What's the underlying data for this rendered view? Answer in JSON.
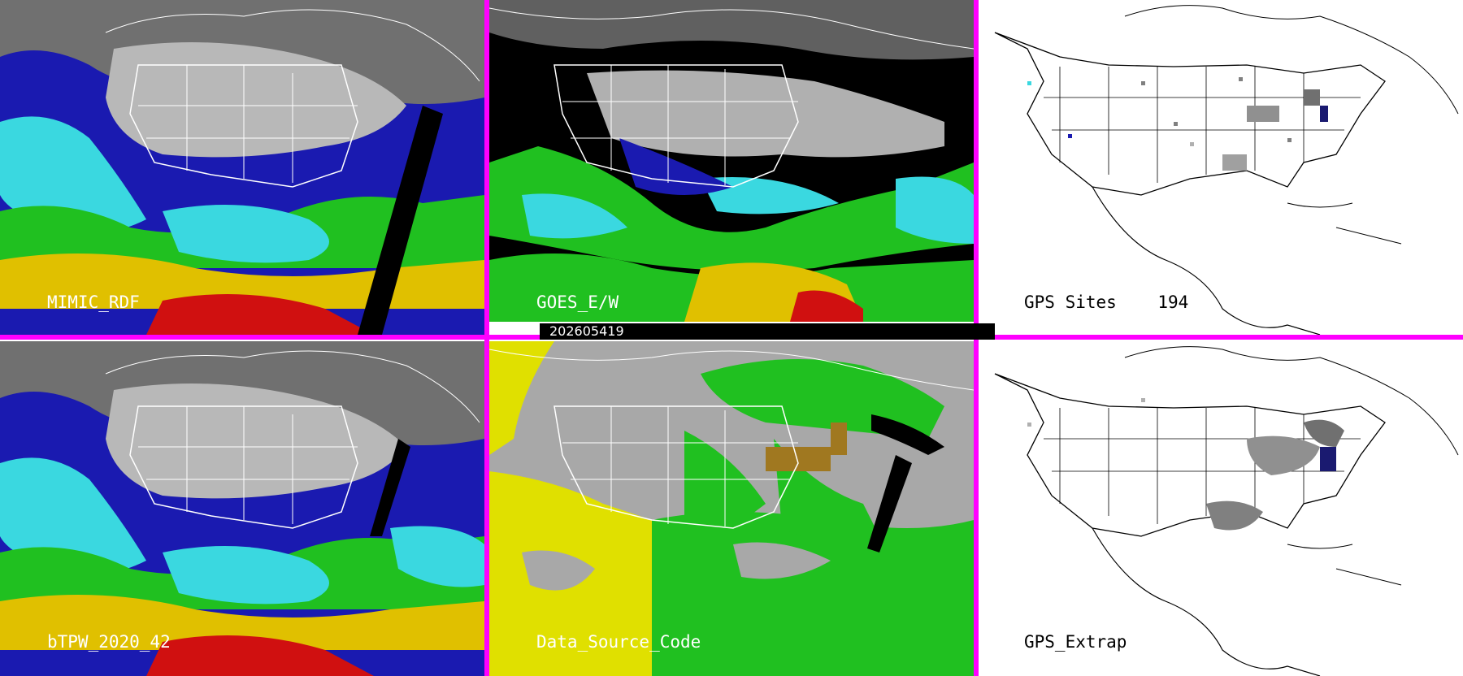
{
  "panels": [
    {
      "id": "p1",
      "label": "MIMIC_RDF"
    },
    {
      "id": "p2",
      "label": "GOES_E/W"
    },
    {
      "id": "p3",
      "label": "GPS Sites",
      "count": "194"
    },
    {
      "id": "p4",
      "label": "bTPW_2020_42"
    },
    {
      "id": "p5",
      "label": "Data_Source_Code"
    },
    {
      "id": "p6",
      "label": "GPS_Extrap"
    }
  ],
  "timestamp": "202605419",
  "colors": {
    "separator": "#ff00ff",
    "tpw_scale": [
      "#404040",
      "#b0b0b0",
      "#1a1ab0",
      "#3ad8e0",
      "#20c020",
      "#e0c000",
      "#d01010"
    ],
    "source_codes": [
      "#a8a8a8",
      "#e0e000",
      "#20c020",
      "#a07820"
    ]
  }
}
